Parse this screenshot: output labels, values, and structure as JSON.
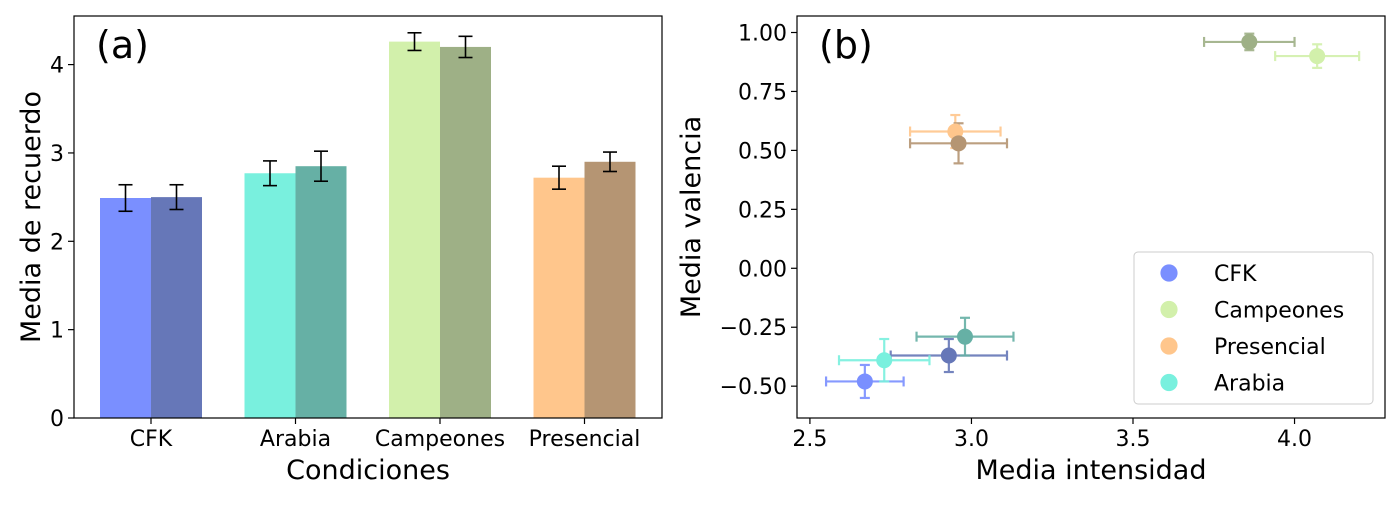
{
  "figure": {
    "colors": {
      "CFK": [
        "#7a8fff",
        "#6677b8"
      ],
      "Arabia": [
        "#79f0de",
        "#66b0a5"
      ],
      "Campeones": [
        "#d2f0ab",
        "#9eb086"
      ],
      "Presencial": [
        "#ffc68c",
        "#b59573"
      ]
    }
  },
  "chart_data": [
    {
      "type": "bar",
      "panel_label": "(a)",
      "xlabel": "Condiciones",
      "ylabel": "Media de recuerdo",
      "ylim": [
        0,
        4.55
      ],
      "yticks": [
        0,
        1,
        2,
        3,
        4
      ],
      "categories": [
        "CFK",
        "Arabia",
        "Campeones",
        "Presencial"
      ],
      "series": [
        {
          "values": [
            2.49,
            2.77,
            4.26,
            2.72
          ],
          "err": [
            0.15,
            0.14,
            0.1,
            0.13
          ]
        },
        {
          "values": [
            2.5,
            2.85,
            4.2,
            2.9
          ],
          "err": [
            0.14,
            0.17,
            0.12,
            0.11
          ]
        }
      ]
    },
    {
      "type": "scatter",
      "panel_label": "(b)",
      "xlabel": "Media intensidad",
      "ylabel": "Media valencia",
      "xlim": [
        2.46,
        4.28
      ],
      "ylim": [
        -0.635,
        1.07
      ],
      "xticks": [
        "2.5",
        "3.0",
        "3.5",
        "4.0"
      ],
      "yticks": [
        "1.00",
        "0.75",
        "0.50",
        "0.25",
        "0.00",
        "−0.25",
        "−0.50"
      ],
      "legend": {
        "position": "bottom-right",
        "entries": [
          "CFK",
          "Campeones",
          "Presencial",
          "Arabia"
        ]
      },
      "points": [
        {
          "group": "CFK",
          "variant": 0,
          "x": 2.67,
          "y": -0.48,
          "xerr": 0.12,
          "yerr": 0.07
        },
        {
          "group": "CFK",
          "variant": 1,
          "x": 2.93,
          "y": -0.37,
          "xerr": 0.18,
          "yerr": 0.07
        },
        {
          "group": "Arabia",
          "variant": 0,
          "x": 2.73,
          "y": -0.39,
          "xerr": 0.14,
          "yerr": 0.09
        },
        {
          "group": "Arabia",
          "variant": 1,
          "x": 2.98,
          "y": -0.29,
          "xerr": 0.15,
          "yerr": 0.08
        },
        {
          "group": "Campeones",
          "variant": 0,
          "x": 4.07,
          "y": 0.9,
          "xerr": 0.13,
          "yerr": 0.05
        },
        {
          "group": "Campeones",
          "variant": 1,
          "x": 3.86,
          "y": 0.96,
          "xerr": 0.14,
          "yerr": 0.035
        },
        {
          "group": "Presencial",
          "variant": 0,
          "x": 2.95,
          "y": 0.58,
          "xerr": 0.14,
          "yerr": 0.07
        },
        {
          "group": "Presencial",
          "variant": 1,
          "x": 2.96,
          "y": 0.53,
          "xerr": 0.15,
          "yerr": 0.085
        }
      ]
    }
  ]
}
